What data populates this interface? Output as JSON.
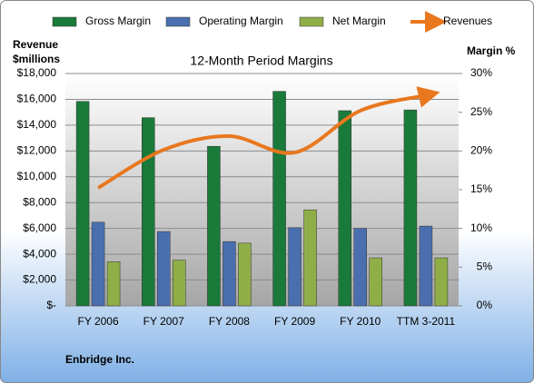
{
  "chart_data": {
    "type": "bar",
    "title": "12-Month Period Margins",
    "ylabel": [
      "Revenue",
      "$millions"
    ],
    "y2label": "Margin %",
    "source": "Enbridge Inc.",
    "categories": [
      "FY 2006",
      "FY 2007",
      "FY 2008",
      "FY 2009",
      "FY 2010",
      "TTM 3-2011"
    ],
    "series": [
      {
        "name": "Gross Margin",
        "type": "bar",
        "axis": "y2",
        "color": "#1a7a3a",
        "values": [
          26.4,
          24.3,
          20.6,
          27.7,
          25.2,
          25.3
        ]
      },
      {
        "name": "Operating Margin",
        "type": "bar",
        "axis": "y2",
        "color": "#4a6fae",
        "values": [
          10.8,
          9.6,
          8.3,
          10.1,
          10.0,
          10.3
        ]
      },
      {
        "name": "Net Margin",
        "type": "bar",
        "axis": "y2",
        "color": "#8fae48",
        "values": [
          5.7,
          5.9,
          8.1,
          12.4,
          6.2,
          6.2
        ]
      },
      {
        "name": "Revenues",
        "type": "line",
        "axis": "y",
        "color": "#e8771e",
        "values": [
          9140,
          12090,
          13150,
          11880,
          15120,
          16310
        ]
      }
    ],
    "ylim": [
      0,
      18000
    ],
    "yticks": [
      {
        "value": 0,
        "label": "$-"
      },
      {
        "value": 2000,
        "label": "$2,000"
      },
      {
        "value": 4000,
        "label": "$4,000"
      },
      {
        "value": 6000,
        "label": "$6,000"
      },
      {
        "value": 8000,
        "label": "$8,000"
      },
      {
        "value": 10000,
        "label": "$10,000"
      },
      {
        "value": 12000,
        "label": "$12,000"
      },
      {
        "value": 14000,
        "label": "$14,000"
      },
      {
        "value": 16000,
        "label": "$16,000"
      },
      {
        "value": 18000,
        "label": "$18,000"
      }
    ],
    "y2lim": [
      0,
      30
    ],
    "y2ticks": [
      {
        "value": 0,
        "label": "0%"
      },
      {
        "value": 5,
        "label": "5%"
      },
      {
        "value": 10,
        "label": "10%"
      },
      {
        "value": 15,
        "label": "15%"
      },
      {
        "value": 20,
        "label": "20%"
      },
      {
        "value": 25,
        "label": "25%"
      },
      {
        "value": 30,
        "label": "30%"
      }
    ],
    "grid": true
  }
}
